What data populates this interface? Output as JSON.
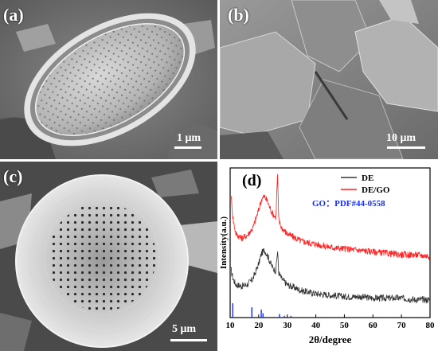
{
  "panels": {
    "a": {
      "label": "(a)",
      "scale": "1 μm"
    },
    "b": {
      "label": "(b)",
      "scale": "10 μm"
    },
    "c": {
      "label": "(c)",
      "scale": "5 μm"
    },
    "d": {
      "label": "(d)"
    }
  },
  "chart_data": {
    "type": "line",
    "xlabel": "2θ/degree",
    "ylabel": "Intensity(a.u.)",
    "xlim": [
      10,
      80
    ],
    "xticks": [
      "10",
      "20",
      "30",
      "40",
      "50",
      "60",
      "70",
      "80"
    ],
    "legend_position": "top-right",
    "series": [
      {
        "name": "DE",
        "color": "#333333",
        "x": [
          10.3,
          11,
          12,
          14,
          16,
          18,
          20,
          21,
          22,
          23,
          24,
          25,
          26,
          26.6,
          27,
          28,
          30,
          35,
          40,
          45,
          50,
          55,
          60,
          65,
          70,
          75,
          80
        ],
        "y": [
          0.32,
          0.26,
          0.22,
          0.21,
          0.22,
          0.26,
          0.36,
          0.43,
          0.45,
          0.42,
          0.37,
          0.33,
          0.31,
          0.45,
          0.3,
          0.26,
          0.22,
          0.18,
          0.16,
          0.15,
          0.14,
          0.14,
          0.13,
          0.13,
          0.13,
          0.12,
          0.12
        ]
      },
      {
        "name": "DE/GO",
        "color": "#ff2020",
        "x": [
          10.3,
          11,
          12,
          14,
          16,
          18,
          20,
          21,
          22,
          23,
          24,
          25,
          26,
          26.6,
          27,
          28,
          30,
          35,
          40,
          45,
          50,
          55,
          60,
          65,
          70,
          75,
          80
        ],
        "y": [
          0.82,
          0.66,
          0.56,
          0.53,
          0.55,
          0.6,
          0.72,
          0.79,
          0.81,
          0.78,
          0.73,
          0.69,
          0.67,
          0.96,
          0.65,
          0.6,
          0.56,
          0.51,
          0.49,
          0.47,
          0.46,
          0.45,
          0.44,
          0.43,
          0.42,
          0.42,
          0.41
        ]
      }
    ],
    "reference": {
      "name": "GO：PDF#44-0558",
      "color": "#1a2ee6",
      "peaks": [
        {
          "x": 10.9,
          "h": 1.0
        },
        {
          "x": 17.6,
          "h": 0.72
        },
        {
          "x": 20.9,
          "h": 0.56
        },
        {
          "x": 21.5,
          "h": 0.3
        },
        {
          "x": 27.3,
          "h": 0.25
        },
        {
          "x": 29.0,
          "h": 0.12
        },
        {
          "x": 31.3,
          "h": 0.12
        }
      ]
    }
  }
}
